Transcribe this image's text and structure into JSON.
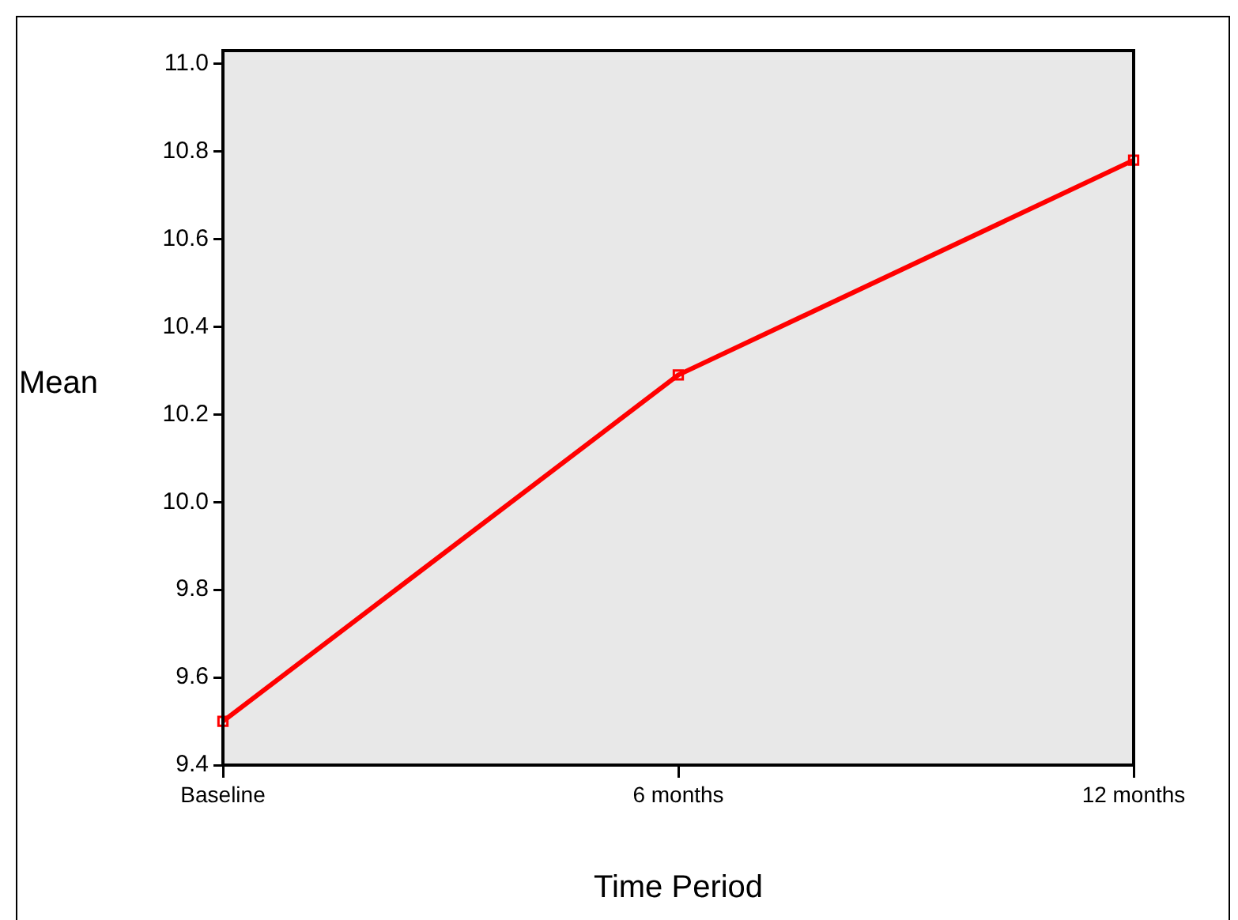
{
  "chart_data": {
    "type": "line",
    "xlabel": "Time Period",
    "ylabel": "Mean",
    "categories": [
      "Baseline",
      "6 months",
      "12 months"
    ],
    "series": [
      {
        "color": "#ff0000",
        "values": [
          9.5,
          10.29,
          10.78
        ]
      }
    ],
    "ylim": [
      9.4,
      11.03
    ],
    "yticks": [
      9.4,
      9.6,
      9.8,
      {
        "value": 10,
        "label": "10.0"
      },
      10.2,
      10.4,
      10.6,
      10.8,
      {
        "value": 11,
        "label": "11.0"
      }
    ],
    "grid": false,
    "legend": false,
    "marker": "square",
    "line_style": "solid"
  }
}
